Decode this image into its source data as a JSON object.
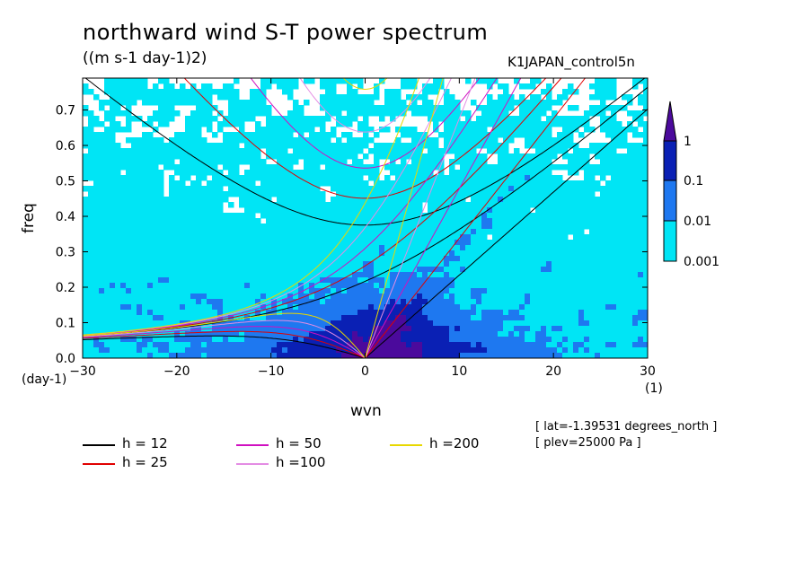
{
  "title": "northward wind S-T power spectrum",
  "units_label": "((m s-1 day-1)2)",
  "run_name": "K1JAPAN_control5n",
  "info": [
    "[ lat=-1.39531 degrees_north ]",
    "[ plev=25000 Pa ]"
  ],
  "chart_data": {
    "type": "heatmap",
    "xlabel": "wvn",
    "ylabel": "freq",
    "x_unit": "(1)",
    "y_unit": "(day-1)",
    "xlim": [
      -30,
      30
    ],
    "ylim": [
      0,
      0.79
    ],
    "x_ticks": [
      -30,
      -20,
      -10,
      0,
      10,
      20,
      30
    ],
    "y_ticks": [
      0.0,
      0.1,
      0.2,
      0.3,
      0.4,
      0.5,
      0.6,
      0.7
    ],
    "x_tick_labels": [
      "-30",
      "-20",
      "-10",
      "0",
      "10",
      "20",
      "30"
    ],
    "y_tick_labels": [
      "0.0",
      "0.1",
      "0.2",
      "0.3",
      "0.4",
      "0.5",
      "0.6",
      "0.7"
    ],
    "colorbar": {
      "levels": [
        0.001,
        0.01,
        0.1,
        1
      ],
      "labels": [
        "0.001",
        "0.01",
        "0.1",
        "1"
      ],
      "colors": [
        "#00e5f5",
        "#1e78f0",
        "#0a20b4",
        "#4b0a9c"
      ]
    },
    "dispersion_curves": [
      {
        "label": "h = 12",
        "h": 12,
        "color": "#000000"
      },
      {
        "label": "h = 25",
        "h": 25,
        "color": "#e00000"
      },
      {
        "label": "h = 50",
        "h": 50,
        "color": "#d010c0"
      },
      {
        "label": "h =100",
        "h": 100,
        "color": "#e38ce3"
      },
      {
        "label": "h =200",
        "h": 200,
        "color": "#e8d800"
      }
    ]
  }
}
